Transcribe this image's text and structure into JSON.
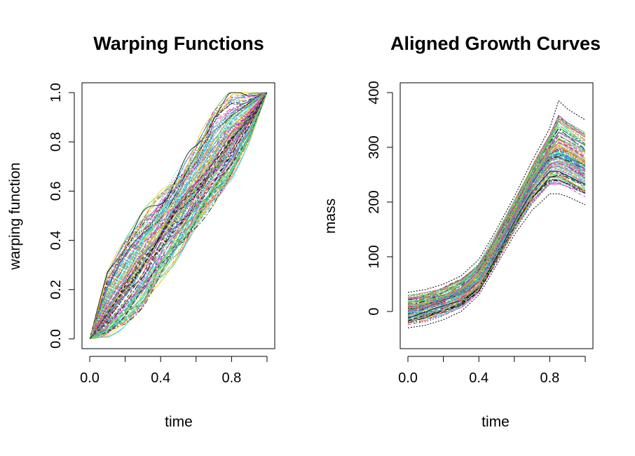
{
  "chart_data": [
    {
      "type": "line",
      "title": "Warping Functions",
      "xlabel": "time",
      "ylabel": "warping function",
      "xlim": [
        0,
        1
      ],
      "ylim": [
        0,
        1
      ],
      "xticks": [
        0,
        0.2,
        0.4,
        0.6,
        0.8,
        1.0
      ],
      "xtick_labels": [
        "0.0",
        "",
        "0.4",
        "",
        "0.8",
        ""
      ],
      "yticks": [
        0,
        0.2,
        0.4,
        0.6,
        0.8,
        1.0
      ],
      "ytick_labels": [
        "0.0",
        "0.2",
        "0.4",
        "0.6",
        "0.8",
        "1.0"
      ],
      "grid": false,
      "legend": "none",
      "series_summary": "many gamma curves from (0,0) to (1,1); dense band around the diagonal",
      "x": [
        0,
        0.1,
        0.2,
        0.3,
        0.4,
        0.5,
        0.6,
        0.7,
        0.8,
        0.9,
        1.0
      ],
      "band_lower": [
        0,
        0.01,
        0.05,
        0.13,
        0.24,
        0.35,
        0.45,
        0.55,
        0.65,
        0.8,
        1.0
      ],
      "band_center": [
        0,
        0.1,
        0.21,
        0.32,
        0.42,
        0.52,
        0.61,
        0.71,
        0.81,
        0.9,
        1.0
      ],
      "band_upper": [
        0,
        0.28,
        0.4,
        0.5,
        0.58,
        0.67,
        0.78,
        0.93,
        1.0,
        1.0,
        1.0
      ]
    },
    {
      "type": "line",
      "title": "Aligned Growth Curves",
      "xlabel": "time",
      "ylabel": "mass",
      "xlim": [
        0,
        1
      ],
      "ylim": [
        -50,
        400
      ],
      "xticks": [
        0,
        0.2,
        0.4,
        0.6,
        0.8,
        1.0
      ],
      "xtick_labels": [
        "0.0",
        "",
        "0.4",
        "",
        "0.8",
        ""
      ],
      "yticks": [
        0,
        100,
        200,
        300,
        400
      ],
      "ytick_labels": [
        "0",
        "100",
        "200",
        "300",
        "400"
      ],
      "grid": false,
      "legend": "none",
      "series_summary": "many aligned sigmoidal growth curves peaking near t=0.85",
      "x": [
        0,
        0.1,
        0.2,
        0.3,
        0.4,
        0.5,
        0.6,
        0.7,
        0.8,
        0.85,
        0.9,
        1.0
      ],
      "mean": [
        5,
        10,
        20,
        35,
        62,
        115,
        175,
        235,
        285,
        292,
        285,
        265
      ],
      "lower": [
        -30,
        -25,
        -15,
        0,
        30,
        85,
        140,
        185,
        215,
        215,
        210,
        195
      ],
      "upper": [
        35,
        40,
        50,
        65,
        95,
        150,
        210,
        275,
        335,
        385,
        370,
        350
      ]
    }
  ],
  "colors": {
    "palette": [
      "#000000",
      "#DF536B",
      "#61D04F",
      "#2297E6",
      "#28E2E5",
      "#CD0BBC",
      "#F5C710",
      "#9E9E9E"
    ],
    "axis": "#000000",
    "background": "#ffffff"
  }
}
